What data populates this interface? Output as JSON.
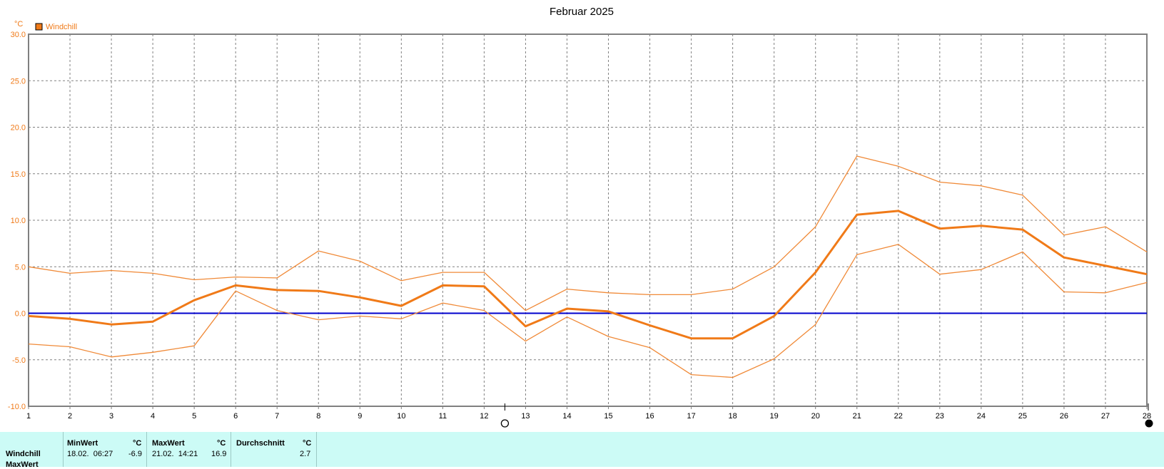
{
  "chart_data": {
    "type": "line",
    "title": "Februar 2025",
    "ylabel": "°C",
    "ylim": [
      -10,
      30
    ],
    "yticks": [
      "30.0",
      "25.0",
      "20.0",
      "15.0",
      "10.0",
      "5.0",
      "0.0",
      "-5.0",
      "-10.0"
    ],
    "categories": [
      "1",
      "2",
      "3",
      "4",
      "5",
      "6",
      "7",
      "8",
      "9",
      "10",
      "11",
      "12",
      "13",
      "14",
      "15",
      "16",
      "17",
      "18",
      "19",
      "20",
      "21",
      "22",
      "23",
      "24",
      "25",
      "26",
      "27",
      "28"
    ],
    "legend": [
      "Windchill"
    ],
    "grid": true,
    "zero_line_color": "#0000cc",
    "series": [
      {
        "name": "Windchill",
        "role": "mean",
        "color": "#f07a18",
        "values": [
          -0.3,
          -0.6,
          -1.2,
          -0.9,
          1.4,
          3.0,
          2.5,
          2.4,
          1.7,
          0.8,
          3.0,
          2.9,
          -1.4,
          0.5,
          0.2,
          -1.3,
          -2.7,
          -2.7,
          -0.3,
          4.4,
          10.6,
          11.0,
          9.1,
          9.4,
          9.0,
          6.0,
          5.1,
          4.2
        ]
      },
      {
        "role": "max",
        "color": "#f08a38",
        "values": [
          5.0,
          4.3,
          4.6,
          4.3,
          3.6,
          3.9,
          3.8,
          6.7,
          5.6,
          3.5,
          4.4,
          4.4,
          0.3,
          2.6,
          2.2,
          2.0,
          2.0,
          2.6,
          5.0,
          9.3,
          16.9,
          15.8,
          14.1,
          13.7,
          12.7,
          8.4,
          9.3,
          6.6
        ]
      },
      {
        "role": "min",
        "color": "#f08a38",
        "values": [
          -3.3,
          -3.6,
          -4.7,
          -4.2,
          -3.5,
          2.4,
          0.3,
          -0.7,
          -0.3,
          -0.6,
          1.1,
          0.3,
          -3.0,
          -0.4,
          -2.5,
          -3.7,
          -6.6,
          -6.9,
          -4.9,
          -1.2,
          6.3,
          7.4,
          4.2,
          4.7,
          6.6,
          2.3,
          2.2,
          3.3
        ]
      }
    ]
  },
  "axis_markers": {
    "moon_new_day": 28,
    "moon_full_day": 12.5
  },
  "stats": {
    "row_label": "Windchill",
    "row_label_2": "MaxWert",
    "min": {
      "header": "MinWert",
      "unit": "°C",
      "datetime": "18.02.  06:27",
      "value": "-6.9"
    },
    "max": {
      "header": "MaxWert",
      "unit": "°C",
      "datetime": "21.02.  14:21",
      "value": "16.9"
    },
    "avg": {
      "header": "Durchschnitt",
      "unit": "°C",
      "value": "2.7"
    }
  },
  "colors": {
    "axis_text": "#f07a18",
    "grid": "#808080",
    "stats_bg": "#ccfbf6"
  }
}
